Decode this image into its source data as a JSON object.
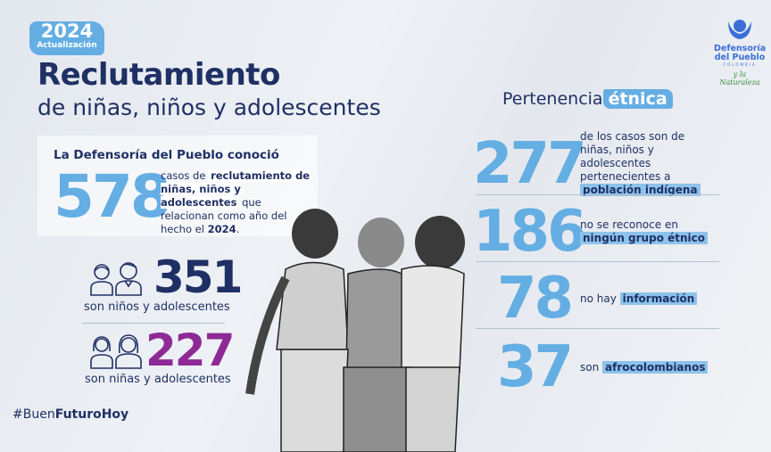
{
  "badge": {
    "year": "2024",
    "label": "Actualización"
  },
  "title": {
    "main": "Reclutamiento",
    "sub": "de niñas, niños y adolescentes"
  },
  "summary": {
    "heading": "La Defensoría del Pueblo conoció",
    "number": "578",
    "text_pre": "casos de ",
    "text_bold": "reclutamiento de niñas, niños y adolescentes",
    "text_post": " que relacionan como año del hecho el ",
    "text_year": "2024",
    "text_end": "."
  },
  "boys": {
    "number": "351",
    "caption": "son niños y adolescentes",
    "color": "#1f3064"
  },
  "girls": {
    "number": "227",
    "caption": "son niñas y adolescentes",
    "color": "#8e2a96"
  },
  "hashtag": {
    "pre": "#Buen",
    "bold": "FuturoHoy"
  },
  "logo": {
    "line1": "Defensoría",
    "line2": "del Pueblo",
    "country": "COLOMBIA",
    "tagline": "y la Naturaleza"
  },
  "ethnic": {
    "title": "Pertenencia",
    "title_highlight": "étnica",
    "items": [
      {
        "number": "277",
        "text": "de los casos son de niñas, niños y adolescentes pertenecientes a",
        "key": "población indígena"
      },
      {
        "number": "186",
        "text": "no se reconoce en",
        "key": "ningún grupo étnico"
      },
      {
        "number": "78",
        "text": "no hay",
        "key": "información"
      },
      {
        "number": "37",
        "text": "son",
        "key": "afrocolombianos"
      }
    ]
  },
  "colors": {
    "navy": "#1f3064",
    "blue": "#64aee3",
    "purple": "#8e2a96"
  }
}
